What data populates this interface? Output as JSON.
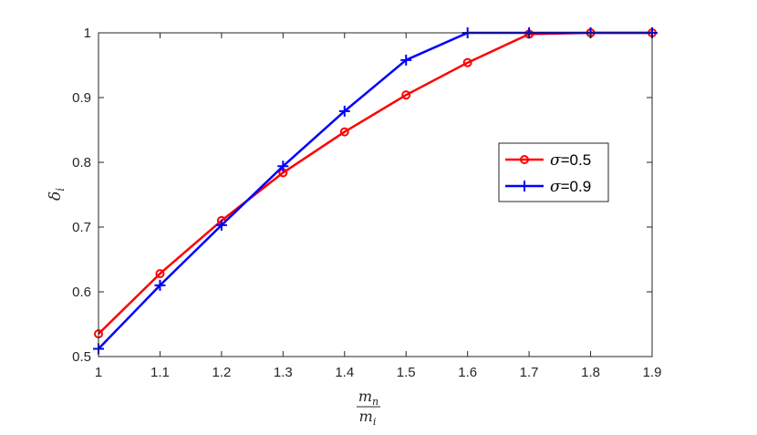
{
  "chart_data": {
    "type": "line",
    "xlabel": {
      "numerator": "m",
      "numerator_sub": "n",
      "denominator": "m",
      "denominator_sub": "i"
    },
    "ylabel": {
      "symbol": "δ",
      "sub": "i"
    },
    "x": [
      1,
      1.1,
      1.2,
      1.3,
      1.4,
      1.5,
      1.6,
      1.7,
      1.8,
      1.9
    ],
    "xlim": [
      1,
      1.9
    ],
    "ylim": [
      0.5,
      1
    ],
    "xticks": [
      "1",
      "1.1",
      "1.2",
      "1.3",
      "1.4",
      "1.5",
      "1.6",
      "1.7",
      "1.8",
      "1.9"
    ],
    "yticks": [
      "0.5",
      "0.6",
      "0.7",
      "0.8",
      "0.9",
      "1"
    ],
    "grid": false,
    "legend_position": "center-right",
    "series": [
      {
        "name_symbol": "σ",
        "name_value": "=0.5",
        "color": "#ff0000",
        "marker": "circle",
        "values": [
          0.535,
          0.628,
          0.71,
          0.784,
          0.847,
          0.904,
          0.954,
          0.998,
          1.0,
          1.0
        ]
      },
      {
        "name_symbol": "σ",
        "name_value": "=0.9",
        "color": "#0000ff",
        "marker": "plus",
        "values": [
          0.512,
          0.61,
          0.703,
          0.794,
          0.879,
          0.958,
          1.0,
          1.0,
          1.0,
          1.0
        ]
      }
    ]
  }
}
